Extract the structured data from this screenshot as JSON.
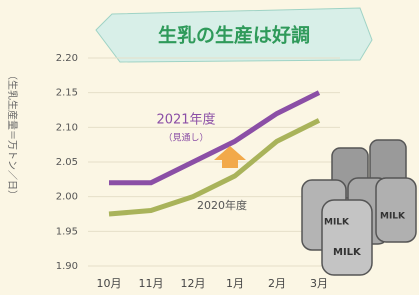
{
  "chart_data": {
    "type": "line",
    "title": "生乳の生産は好調",
    "y_label": "（生乳生産量＝万トン／日）",
    "categories": [
      "10月",
      "11月",
      "12月",
      "1月",
      "2月",
      "3月"
    ],
    "series": [
      {
        "name": "2021年度",
        "color": "#8b4fa6",
        "values": [
          2.02,
          2.02,
          2.05,
          2.08,
          2.12,
          2.15
        ]
      },
      {
        "name": "2020年度",
        "color": "#a9b35a",
        "values": [
          1.975,
          1.98,
          2.0,
          2.03,
          2.08,
          2.11
        ]
      }
    ],
    "annotation": "（見通し）",
    "illustration_text": "MILK",
    "ylim": [
      1.9,
      2.2
    ],
    "yticks": [
      {
        "value": 1.9,
        "label": "1.90"
      },
      {
        "value": 1.95,
        "label": "1.95"
      },
      {
        "value": 2.0,
        "label": "2.00"
      },
      {
        "value": 2.05,
        "label": "2.05"
      },
      {
        "value": 2.1,
        "label": "2.10"
      },
      {
        "value": 2.15,
        "label": "2.15"
      },
      {
        "value": 2.2,
        "label": "2.20"
      }
    ],
    "grid": true
  }
}
